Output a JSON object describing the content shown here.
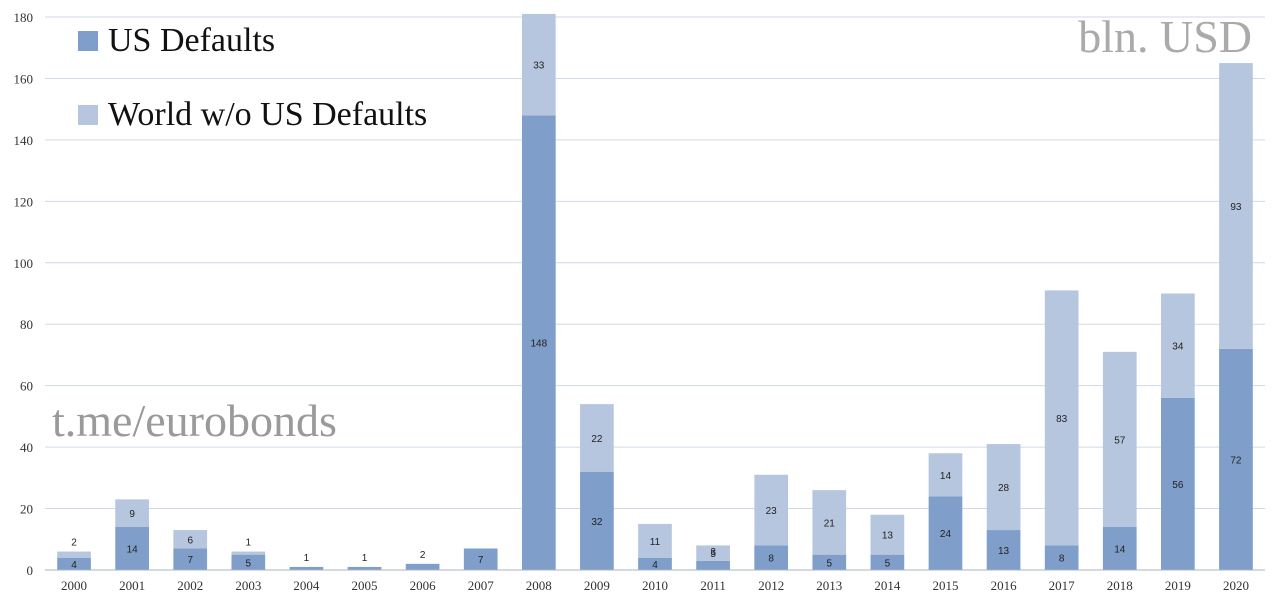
{
  "chart_data": {
    "type": "bar",
    "stacked": true,
    "unit_label": "bln. USD",
    "watermark": "t.me/eurobonds",
    "categories": [
      "2000",
      "2001",
      "2002",
      "2003",
      "2004",
      "2005",
      "2006",
      "2007",
      "2008",
      "2009",
      "2010",
      "2011",
      "2012",
      "2013",
      "2014",
      "2015",
      "2016",
      "2017",
      "2018",
      "2019",
      "2020"
    ],
    "series": [
      {
        "name": "US Defaults",
        "color": "#7f9ec9",
        "values": [
          4,
          14,
          7,
          5,
          1,
          1,
          2,
          7,
          148,
          32,
          4,
          3,
          8,
          5,
          5,
          24,
          13,
          8,
          14,
          56,
          72
        ],
        "labels": [
          "4",
          "14",
          "7",
          "5",
          "1",
          "1",
          "2",
          "7",
          "148",
          "32",
          "4",
          "3",
          "8",
          "5",
          "5",
          "24",
          "13",
          "8",
          "14",
          "56",
          "72"
        ]
      },
      {
        "name": "World w/o US Defaults",
        "color": "#b7c6df",
        "values": [
          2,
          9,
          6,
          1,
          0,
          0,
          0,
          0,
          33,
          22,
          11,
          5,
          23,
          21,
          13,
          14,
          28,
          83,
          57,
          34,
          93
        ],
        "labels": [
          "2",
          "9",
          "6",
          "1",
          "",
          "",
          "",
          "",
          "33",
          "22",
          "11",
          "5",
          "23",
          "21",
          "13",
          "14",
          "28",
          "83",
          "57",
          "34",
          "93"
        ]
      }
    ],
    "ylim": [
      0,
      180
    ],
    "yticks": [
      0,
      20,
      40,
      60,
      80,
      100,
      120,
      140,
      160,
      180
    ],
    "grid": true,
    "legend_position": "top-left"
  }
}
